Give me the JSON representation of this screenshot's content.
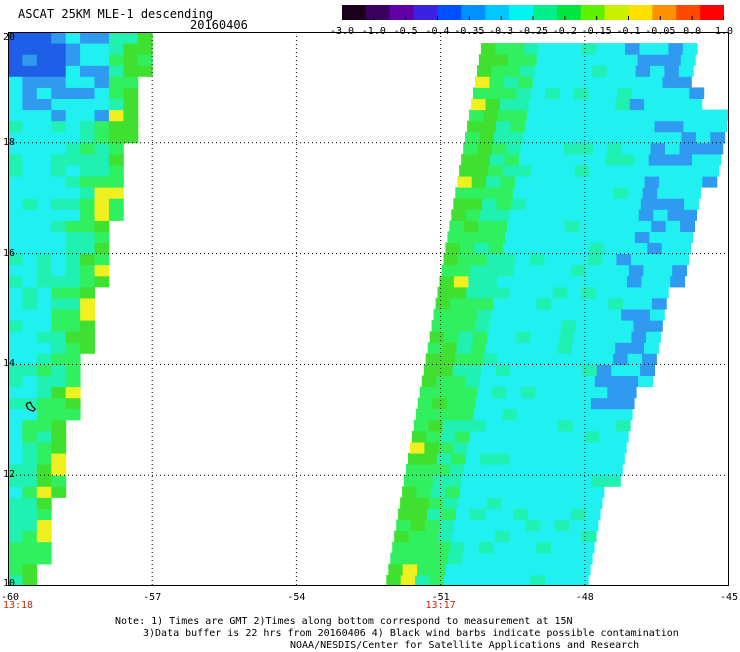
{
  "header": {
    "title": "ASCAT 25KM MLE-1 descending",
    "date": "20160406"
  },
  "colorbar": {
    "ticks": [
      "-3.0",
      "-1.0",
      "-0.5",
      "-0.4",
      "-0.35",
      "-0.3",
      "-0.25",
      "-0.2",
      "-0.15",
      "-0.1",
      "-0.05",
      "0.0",
      "1.0"
    ],
    "colors": [
      "#1a001a",
      "#3a0060",
      "#6000a8",
      "#3b22e0",
      "#0050ff",
      "#0090ff",
      "#00c8ff",
      "#00f5f0",
      "#00f08c",
      "#00e640",
      "#60f000",
      "#c8f000",
      "#ffe000",
      "#ff9000",
      "#ff4800",
      "#ff0000"
    ]
  },
  "map": {
    "x_ticks": [
      "-60",
      "-57",
      "-54",
      "-51",
      "-48",
      "-45"
    ],
    "y_ticks": [
      "20",
      "18",
      "16",
      "14",
      "12",
      "10"
    ],
    "x_range": [
      -60,
      -45
    ],
    "y_range": [
      10,
      20
    ],
    "grid": "dotted",
    "time_labels": [
      {
        "lon": -60,
        "text": "13:18"
      },
      {
        "lon": -51,
        "text": "13:17"
      }
    ]
  },
  "footer": {
    "note_lines": [
      "Note: 1) Times are GMT 2)Times along bottom correspond to measurement at 15N",
      "3)Data buffer is 22 hrs from 20160406 4) Black wind barbs indicate possible contamination",
      "NOAA/NESDIS/Center for Satellite Applications and Research"
    ]
  },
  "palette": {
    "deep_blue": "#1f5fe8",
    "blue": "#2f9af0",
    "cyan": "#20f0f0",
    "cyan_green": "#20f0b0",
    "green": "#30f060",
    "bright_green": "#40e030",
    "yellow": "#f0f020",
    "orange": "#f08020"
  }
}
